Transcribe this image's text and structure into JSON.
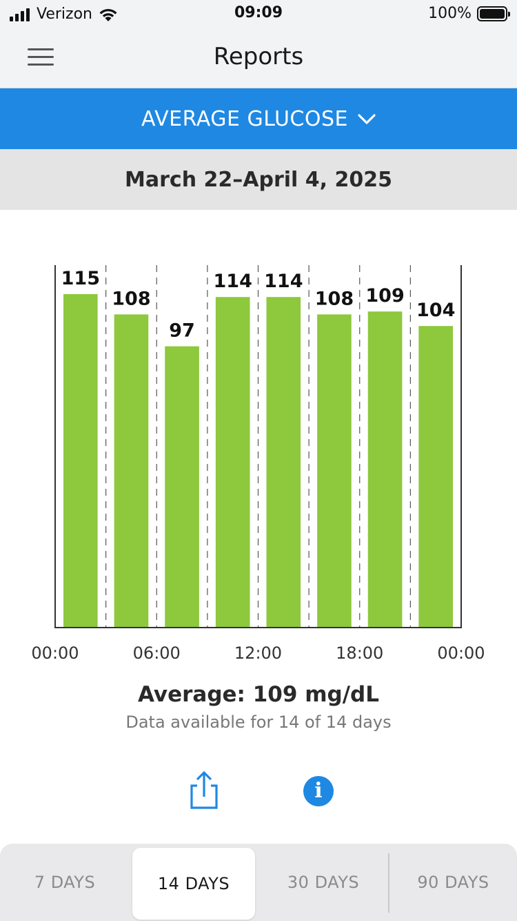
{
  "status_bar": {
    "carrier": "Verizon",
    "time": "09:09",
    "battery": "100%"
  },
  "nav": {
    "title": "Reports",
    "menu_icon": "hamburger-menu-icon"
  },
  "report_selector": {
    "label": "AVERAGE GLUCOSE",
    "icon": "chevron-down-icon"
  },
  "date_range": "March 22–April 4, 2025",
  "chart_data": {
    "type": "bar",
    "unit": "mg/dL",
    "categories": [
      "00:00-03:00",
      "03:00-06:00",
      "06:00-09:00",
      "09:00-12:00",
      "12:00-15:00",
      "15:00-18:00",
      "18:00-21:00",
      "21:00-24:00"
    ],
    "values": [
      115,
      108,
      97,
      114,
      114,
      108,
      109,
      104
    ],
    "x_ticks": [
      "00:00",
      "06:00",
      "12:00",
      "18:00",
      "00:00"
    ],
    "ylim": [
      0,
      125
    ],
    "bar_color": "#8dc83d",
    "grid": "dashed-vertical"
  },
  "summary": {
    "average": "Average: 109 mg/dL",
    "availability": "Data available for 14 of 14 days"
  },
  "actions": {
    "share_icon": "share-icon",
    "info_icon": "info-icon",
    "info_glyph": "i"
  },
  "tabs": [
    {
      "label": "7 DAYS",
      "active": false
    },
    {
      "label": "14 DAYS",
      "active": true
    },
    {
      "label": "30 DAYS",
      "active": false
    },
    {
      "label": "90 DAYS",
      "active": false
    }
  ],
  "colors": {
    "accent": "#1f88e3",
    "bar": "#8dc83d"
  }
}
